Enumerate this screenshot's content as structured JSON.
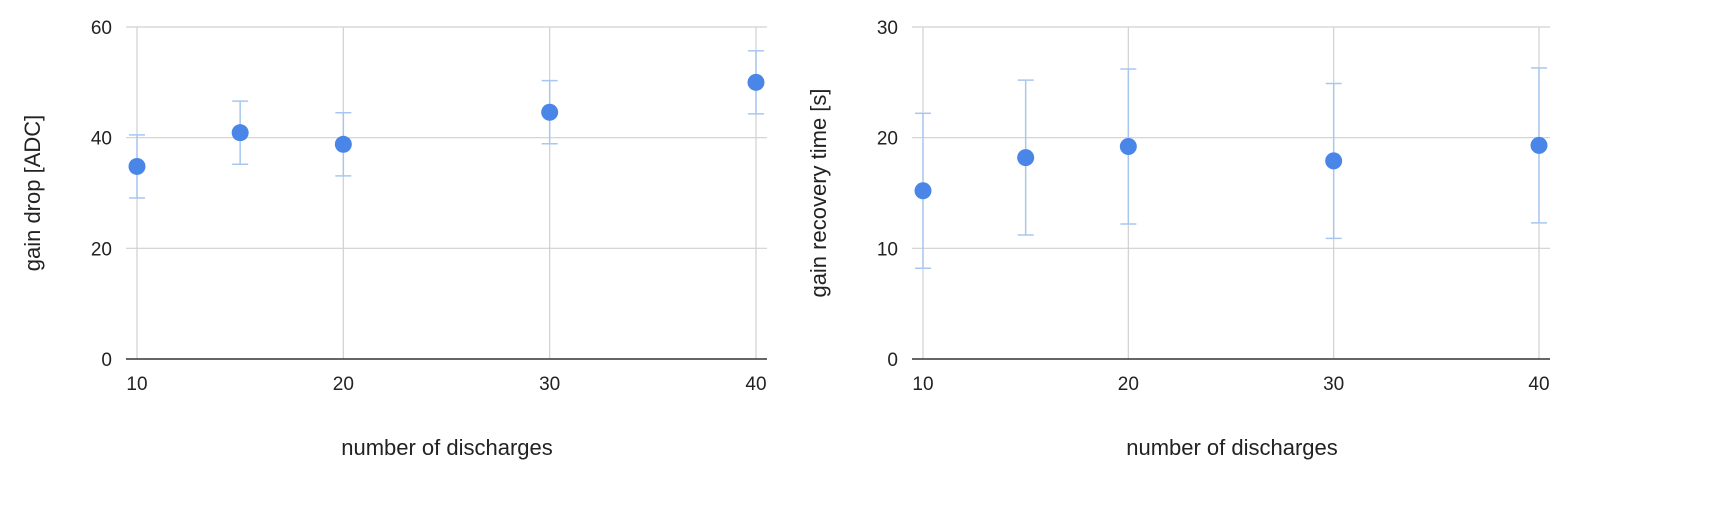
{
  "chart_data": [
    {
      "type": "scatter",
      "title": "",
      "xlabel": "number of discharges",
      "ylabel": "gain drop [ADC]",
      "xlim": [
        10,
        40
      ],
      "ylim": [
        0,
        60
      ],
      "x_ticks": [
        10,
        20,
        30,
        40
      ],
      "y_ticks": [
        0,
        20,
        40,
        60
      ],
      "grid": true,
      "legend": "none",
      "error_bars": true,
      "colors": {
        "marker": "#4a86e8",
        "error_bar": "#a8c7f0",
        "grid": "#d0d0d0",
        "axis": "#333333"
      },
      "series": [
        {
          "x": [
            10,
            15,
            20,
            30,
            40
          ],
          "y": [
            34.8,
            40.9,
            38.8,
            44.6,
            50.0
          ],
          "y_err_low": [
            29.1,
            35.2,
            33.1,
            38.9,
            44.3
          ],
          "y_err_high": [
            40.5,
            46.6,
            44.5,
            50.3,
            55.7
          ]
        }
      ]
    },
    {
      "type": "scatter",
      "title": "",
      "xlabel": "number of discharges",
      "ylabel": "gain recovery time [s]",
      "xlim": [
        10,
        40
      ],
      "ylim": [
        0,
        30
      ],
      "x_ticks": [
        10,
        20,
        30,
        40
      ],
      "y_ticks": [
        0,
        10,
        20,
        30
      ],
      "grid": true,
      "legend": "none",
      "error_bars": true,
      "colors": {
        "marker": "#4a86e8",
        "error_bar": "#a8c7f0",
        "grid": "#d0d0d0",
        "axis": "#333333"
      },
      "series": [
        {
          "x": [
            10,
            15,
            20,
            30,
            40
          ],
          "y": [
            15.2,
            18.2,
            19.2,
            17.9,
            19.3
          ],
          "y_err_low": [
            8.2,
            11.2,
            12.2,
            10.9,
            12.3
          ],
          "y_err_high": [
            22.2,
            25.2,
            26.2,
            24.9,
            26.3
          ]
        }
      ]
    }
  ]
}
